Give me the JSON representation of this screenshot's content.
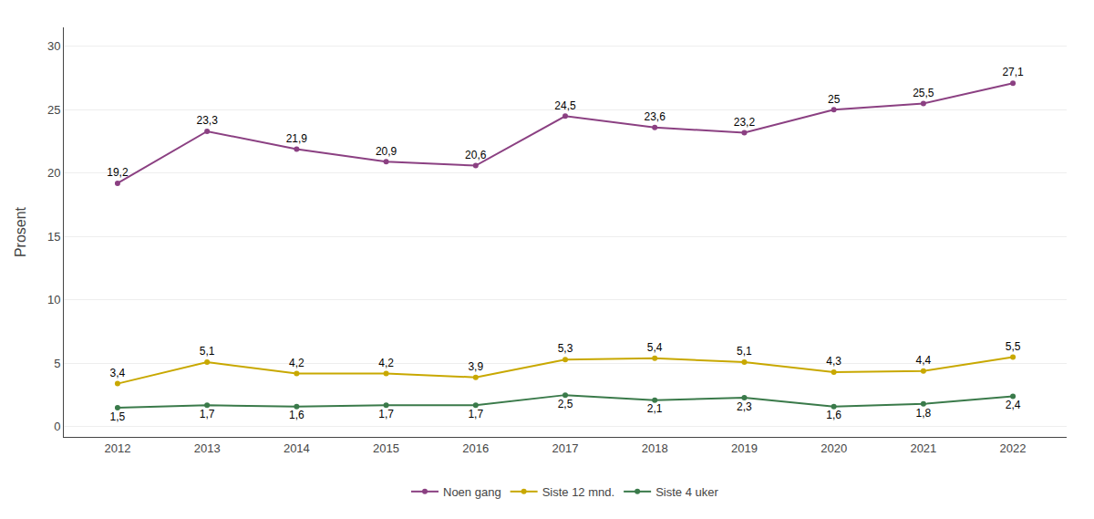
{
  "chart_data": {
    "type": "line",
    "x": [
      2012,
      2013,
      2014,
      2015,
      2016,
      2017,
      2018,
      2019,
      2020,
      2021,
      2022
    ],
    "xlim": [
      2011.4,
      2022.6
    ],
    "xticks": [
      2012,
      2013,
      2014,
      2015,
      2016,
      2017,
      2018,
      2019,
      2020,
      2021,
      2022
    ],
    "ylabel": "Prosent",
    "ylim": [
      -0.8,
      31.5
    ],
    "yticks": [
      0,
      5,
      10,
      15,
      20,
      25,
      30
    ],
    "grid": "y",
    "legend": "bottom",
    "marker": "circle",
    "data_labels": true,
    "series": [
      {
        "name": "Noen gang",
        "color": "#8B4082",
        "values": [
          19.2,
          23.3,
          21.9,
          20.9,
          20.6,
          24.5,
          23.6,
          23.2,
          25.0,
          25.5,
          27.1
        ],
        "value_labels": [
          "19,2",
          "23,3",
          "21,9",
          "20,9",
          "20,6",
          "24,5",
          "23,6",
          "23,2",
          "25",
          "25,5",
          "27,1"
        ]
      },
      {
        "name": "Siste 12 mnd.",
        "color": "#C8A800",
        "values": [
          3.4,
          5.1,
          4.2,
          4.2,
          3.9,
          5.3,
          5.4,
          5.1,
          4.3,
          4.4,
          5.5
        ],
        "value_labels": [
          "3,4",
          "5,1",
          "4,2",
          "4,2",
          "3,9",
          "5,3",
          "5,4",
          "5,1",
          "4,3",
          "4,4",
          "5,5"
        ]
      },
      {
        "name": "Siste 4 uker",
        "color": "#3A7A4A",
        "values": [
          1.5,
          1.7,
          1.6,
          1.7,
          1.7,
          2.5,
          2.1,
          2.3,
          1.6,
          1.8,
          2.4
        ],
        "value_labels": [
          "1,5",
          "1,7",
          "1,6",
          "1,7",
          "1,7",
          "2,5",
          "2,1",
          "2,3",
          "1,6",
          "1,8",
          "2,4"
        ]
      }
    ]
  }
}
